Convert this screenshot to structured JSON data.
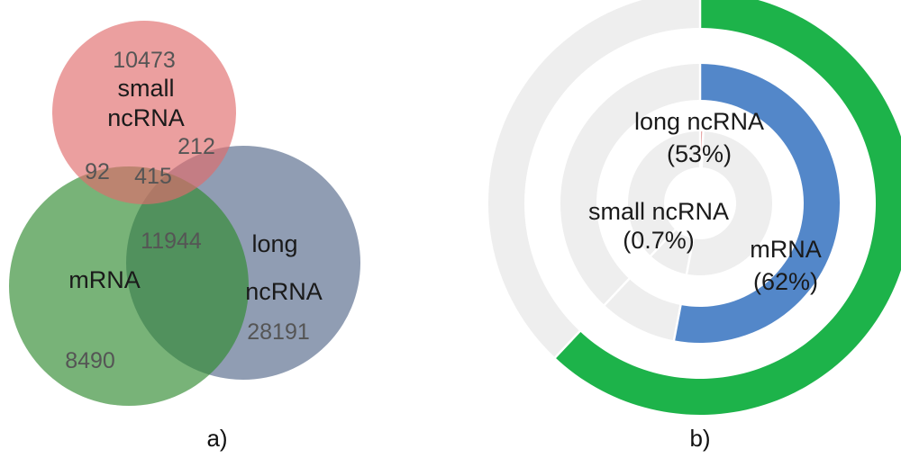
{
  "venn": {
    "sets": {
      "small_ncrna": {
        "name_line1": "small",
        "name_line2": "ncRNA",
        "color": "#e06b6b"
      },
      "mrna": {
        "name": "mRNA",
        "color": "#2f8a2f"
      },
      "long_ncrna": {
        "name_line1": "long",
        "name_line2": "ncRNA",
        "color": "#55698a"
      }
    },
    "counts": {
      "small_only": "10473",
      "small_long": "212",
      "small_mrna": "92",
      "all_three": "415",
      "mrna_long": "11944",
      "long_only": "28191",
      "mrna_only": "8490"
    },
    "panel_label": "a)"
  },
  "chart_data": {
    "type": "donut",
    "rings": [
      {
        "ring": "outer",
        "category": "mRNA",
        "value": 62,
        "unit": "%",
        "label_line1": "mRNA",
        "label_line2": "(62%)",
        "color": "#1db34a",
        "remainder_color": "#eeeeee"
      },
      {
        "ring": "middle",
        "category": "long ncRNA",
        "value": 53,
        "unit": "%",
        "label_line1": "long ncRNA",
        "label_line2": "(53%)",
        "color": "#5387c9",
        "remainder_color": "#eeeeee"
      },
      {
        "ring": "inner",
        "category": "small ncRNA",
        "value": 0.7,
        "unit": "%",
        "label_line1": "small ncRNA",
        "label_line2": "(0.7%)",
        "color": "#e08a8a",
        "remainder_color": "#eeeeee"
      }
    ],
    "start_angle": "12 o'clock",
    "direction": "clockwise",
    "panel_label": "b)"
  }
}
